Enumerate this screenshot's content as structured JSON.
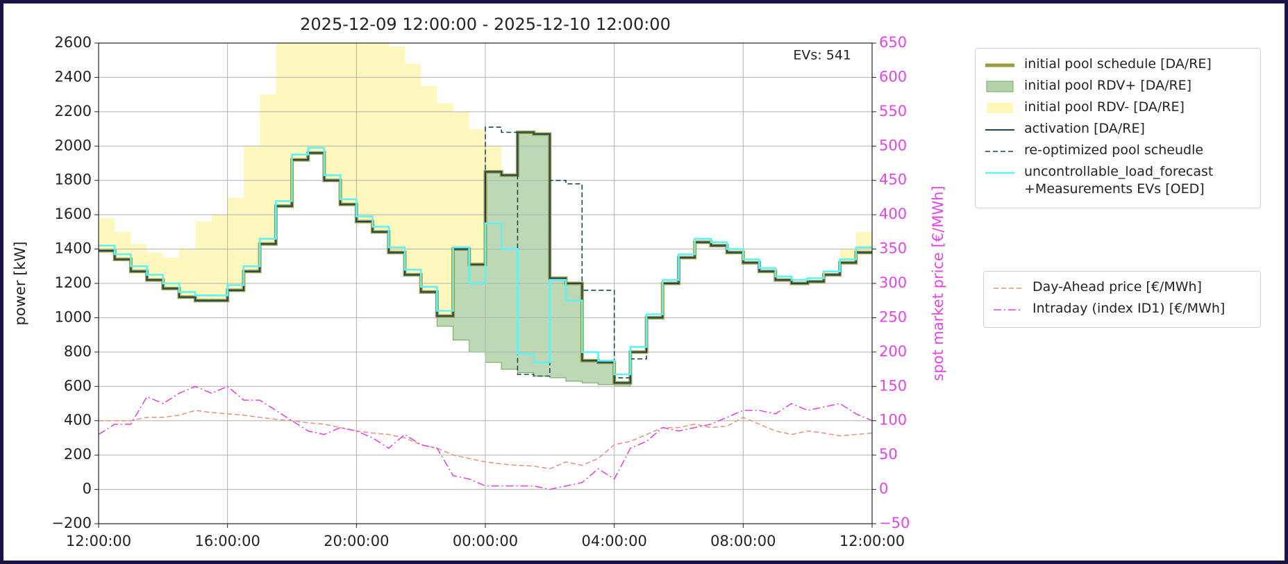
{
  "chart_data": {
    "type": "line",
    "title": "2025-12-09 12:00:00 - 2025-12-10 12:00:00",
    "ylabel": "power [kW]",
    "y2label": "spot market price [€/MWh]",
    "annotation": "EVs: 541",
    "grid": true,
    "x": [
      0,
      0.5,
      1,
      1.5,
      2,
      2.5,
      3,
      3.5,
      4,
      4.5,
      5,
      5.5,
      6,
      6.5,
      7,
      7.5,
      8,
      8.5,
      9,
      9.5,
      10,
      10.5,
      11,
      11.5,
      12,
      12.5,
      13,
      13.5,
      14,
      14.5,
      15,
      15.5,
      16,
      16.5,
      17,
      17.5,
      18,
      18.5,
      19,
      19.5,
      20,
      20.5,
      21,
      21.5,
      22,
      22.5,
      23,
      23.5,
      24
    ],
    "xlim": [
      0,
      24
    ],
    "xticks": [
      {
        "value": 0,
        "label": "12:00:00"
      },
      {
        "value": 4,
        "label": "16:00:00"
      },
      {
        "value": 8,
        "label": "20:00:00"
      },
      {
        "value": 12,
        "label": "00:00:00"
      },
      {
        "value": 16,
        "label": "04:00:00"
      },
      {
        "value": 20,
        "label": "08:00:00"
      },
      {
        "value": 24,
        "label": "12:00:00"
      }
    ],
    "ylim": [
      -200,
      2600
    ],
    "yticks": [
      {
        "value": -200,
        "label": "−200"
      },
      0,
      200,
      400,
      600,
      800,
      1000,
      1200,
      1400,
      1600,
      1800,
      2000,
      2200,
      2400,
      2600
    ],
    "y2lim": [
      -50,
      650
    ],
    "y2ticks": [
      {
        "value": -50,
        "label": "−50"
      },
      0,
      50,
      100,
      150,
      200,
      250,
      300,
      350,
      400,
      450,
      500,
      550,
      600,
      650
    ],
    "series": [
      {
        "name": "initial pool schedule [DA/RE]",
        "color": "#9a9a40",
        "draw": "step",
        "linewidth": 5,
        "values": [
          1390,
          1340,
          1270,
          1220,
          1170,
          1120,
          1100,
          1100,
          1160,
          1270,
          1430,
          1650,
          1920,
          1960,
          1800,
          1660,
          1560,
          1500,
          1380,
          1250,
          1150,
          1010,
          1400,
          1310,
          1850,
          1830,
          2080,
          2070,
          1230,
          1200,
          750,
          740,
          620,
          800,
          1000,
          1200,
          1350,
          1440,
          1420,
          1380,
          1320,
          1270,
          1220,
          1200,
          1210,
          1250,
          1320,
          1380,
          1390
        ]
      },
      {
        "name": "initial pool RDV+ [DA/RE]",
        "color": "#6aa85a",
        "draw": "band",
        "values": [
          null,
          null,
          null,
          null,
          null,
          null,
          null,
          null,
          null,
          null,
          null,
          null,
          null,
          null,
          null,
          null,
          null,
          null,
          null,
          null,
          1150,
          950,
          870,
          800,
          740,
          700,
          680,
          660,
          650,
          630,
          620,
          610,
          600,
          null,
          null,
          null,
          null,
          null,
          null,
          null,
          null,
          null,
          null,
          null,
          null,
          null,
          null,
          null,
          null
        ]
      },
      {
        "name": "initial pool RDV- [DA/RE]",
        "color": "#fff6a8",
        "draw": "band",
        "values": [
          1580,
          1500,
          1430,
          1380,
          1350,
          1400,
          1560,
          1600,
          1700,
          2000,
          2300,
          2650,
          2700,
          2700,
          2700,
          2700,
          2700,
          2650,
          2580,
          2480,
          2350,
          2250,
          2200,
          2100,
          2000,
          null,
          null,
          null,
          null,
          null,
          null,
          null,
          null,
          null,
          null,
          null,
          null,
          null,
          null,
          null,
          null,
          null,
          null,
          null,
          null,
          null,
          1400,
          1500,
          1500
        ]
      },
      {
        "name": "activation [DA/RE]",
        "color": "#1d4456",
        "draw": "step",
        "linewidth": 2,
        "values": [
          1390,
          1340,
          1270,
          1220,
          1170,
          1120,
          1100,
          1100,
          1160,
          1270,
          1430,
          1650,
          1920,
          1960,
          1800,
          1660,
          1560,
          1500,
          1380,
          1250,
          1150,
          1010,
          1400,
          1310,
          1850,
          1830,
          2080,
          2070,
          1230,
          1200,
          750,
          740,
          620,
          800,
          1000,
          1200,
          1350,
          1440,
          1420,
          1380,
          1320,
          1270,
          1220,
          1200,
          1210,
          1250,
          1320,
          1380,
          1390
        ]
      },
      {
        "name": "re-optimized pool scheudle",
        "color": "#1d4456",
        "draw": "step",
        "linewidth": 1.6,
        "linestyle": "dashed",
        "values": [
          1390,
          1340,
          1270,
          1220,
          1170,
          1120,
          1100,
          1100,
          1160,
          1270,
          1430,
          1650,
          1920,
          1960,
          1800,
          1660,
          1560,
          1500,
          1380,
          1250,
          1150,
          1010,
          1400,
          1310,
          2110,
          2080,
          670,
          660,
          1800,
          1780,
          1160,
          1160,
          650,
          760,
          1000,
          1200,
          1350,
          1440,
          1420,
          1380,
          1320,
          1270,
          1220,
          1200,
          1210,
          1250,
          1320,
          1380,
          1390
        ]
      },
      {
        "name": "uncontrollable_load_forecast\n+Measurements EVs [OED]",
        "color": "#5ef2f5",
        "draw": "step",
        "linewidth": 2.6,
        "values": [
          1420,
          1370,
          1300,
          1250,
          1200,
          1150,
          1130,
          1130,
          1190,
          1300,
          1460,
          1680,
          1950,
          1990,
          1830,
          1690,
          1590,
          1530,
          1410,
          1280,
          1180,
          1040,
          1410,
          1200,
          1550,
          1400,
          790,
          740,
          1220,
          1100,
          800,
          750,
          670,
          830,
          1020,
          1220,
          1370,
          1460,
          1440,
          1400,
          1340,
          1290,
          1240,
          1220,
          1230,
          1270,
          1340,
          1410,
          1410
        ]
      },
      {
        "name": "Day-Ahead price [€/MWh]",
        "color": "#e8907a",
        "draw": "line",
        "linewidth": 1.5,
        "linestyle": "dashed",
        "axis": "y2",
        "values": [
          100,
          100,
          100,
          105,
          105,
          108,
          115,
          112,
          110,
          108,
          105,
          102,
          100,
          97,
          95,
          90,
          85,
          82,
          80,
          75,
          65,
          60,
          50,
          45,
          40,
          37,
          35,
          34,
          30,
          40,
          35,
          45,
          65,
          70,
          80,
          90,
          90,
          95,
          90,
          92,
          105,
          95,
          85,
          80,
          85,
          82,
          78,
          80,
          82
        ]
      },
      {
        "name": "Intraday (index ID1) [€/MWh]",
        "color": "#e040e0",
        "draw": "line",
        "linewidth": 1.5,
        "linestyle": "dashdot",
        "axis": "y2",
        "values": [
          80,
          95,
          95,
          135,
          125,
          140,
          150,
          140,
          150,
          130,
          130,
          115,
          100,
          85,
          80,
          90,
          85,
          75,
          60,
          80,
          65,
          60,
          20,
          15,
          5,
          5,
          5,
          5,
          0,
          5,
          10,
          30,
          15,
          60,
          70,
          90,
          85,
          90,
          95,
          105,
          115,
          115,
          110,
          125,
          115,
          120,
          125,
          110,
          100
        ]
      }
    ]
  }
}
